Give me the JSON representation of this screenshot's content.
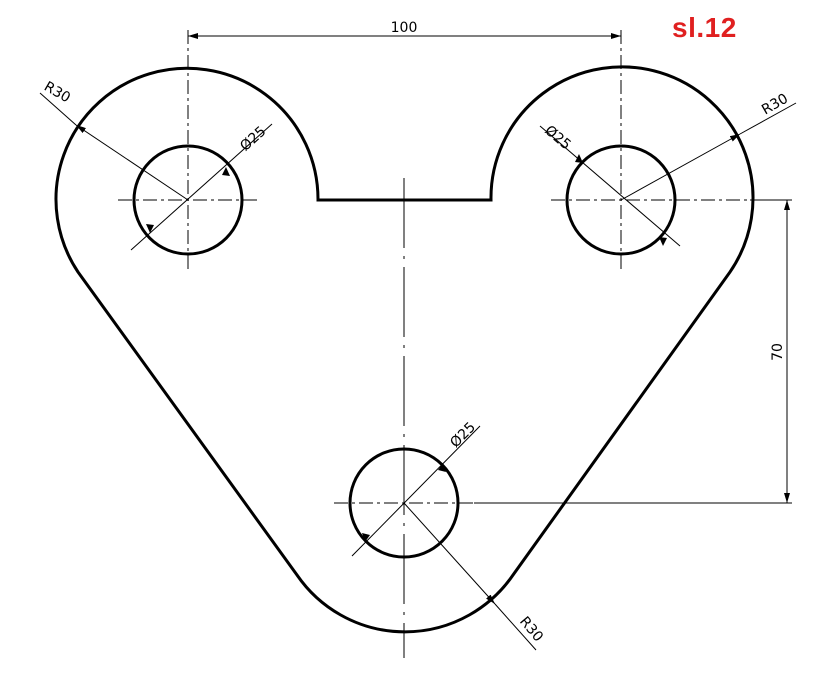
{
  "sheet_label": "sl.12",
  "sheet_label_color": "#e02020",
  "line_color": "#000000",
  "dimensions": {
    "horizontal_distance": "100",
    "vertical_distance": "70",
    "radius_top_left": "R30",
    "radius_top_right": "R30",
    "radius_bottom": "R30",
    "hole_top_left": "Ø25",
    "hole_top_right": "Ø25",
    "hole_bottom": "Ø25"
  }
}
